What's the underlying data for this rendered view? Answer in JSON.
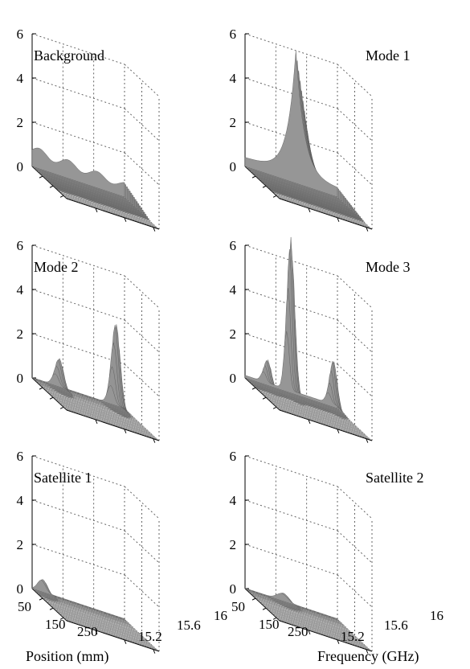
{
  "chart_data": {
    "type": "surface",
    "panels": [
      {
        "title": "Background",
        "peaks": [
          {
            "pos": 0.06,
            "freq": 0.35,
            "height": 0.9,
            "w": 0.06
          }
        ],
        "plateau": 1.0,
        "shape": "background"
      },
      {
        "title": "Mode 1",
        "peaks": [
          {
            "pos": 0.1,
            "freq": 0.55,
            "height": 5.6,
            "w": 0.3
          }
        ],
        "plateau": 0.4,
        "shape": "mode1"
      },
      {
        "title": "Mode 2",
        "peaks": [
          {
            "pos": 0.15,
            "freq": 0.85,
            "height": 3.9,
            "w": 0.05
          },
          {
            "pos": 0.12,
            "freq": 0.25,
            "height": 1.4,
            "w": 0.05
          }
        ],
        "plateau": 0.05,
        "shape": "spiky"
      },
      {
        "title": "Mode 3",
        "peaks": [
          {
            "pos": 0.12,
            "freq": 0.45,
            "height": 7.1,
            "w": 0.04
          },
          {
            "pos": 0.15,
            "freq": 0.9,
            "height": 2.2,
            "w": 0.04
          },
          {
            "pos": 0.12,
            "freq": 0.2,
            "height": 1.2,
            "w": 0.04
          }
        ],
        "plateau": 0.3,
        "shape": "spiky"
      },
      {
        "title": "Satellite 1",
        "peaks": [
          {
            "pos": 0.05,
            "freq": 0.1,
            "height": 0.6,
            "w": 0.06
          }
        ],
        "plateau": 0.05,
        "shape": "flat"
      },
      {
        "title": "Satellite 2",
        "peaks": [
          {
            "pos": 0.06,
            "freq": 0.4,
            "height": 0.4,
            "w": 0.08
          }
        ],
        "plateau": 0.05,
        "shape": "flat"
      }
    ],
    "zaxis": {
      "ticks": [
        "0",
        "2",
        "4",
        "6"
      ],
      "range": [
        0,
        6
      ]
    },
    "position_ticks": [
      "50",
      "150",
      "250"
    ],
    "frequency_ticks": [
      "15.2",
      "15.6",
      "16"
    ],
    "xlabel": "Position (mm)",
    "ylabel": "Frequency (GHz)",
    "surface_color": "#8c8c8c",
    "grid": true
  }
}
